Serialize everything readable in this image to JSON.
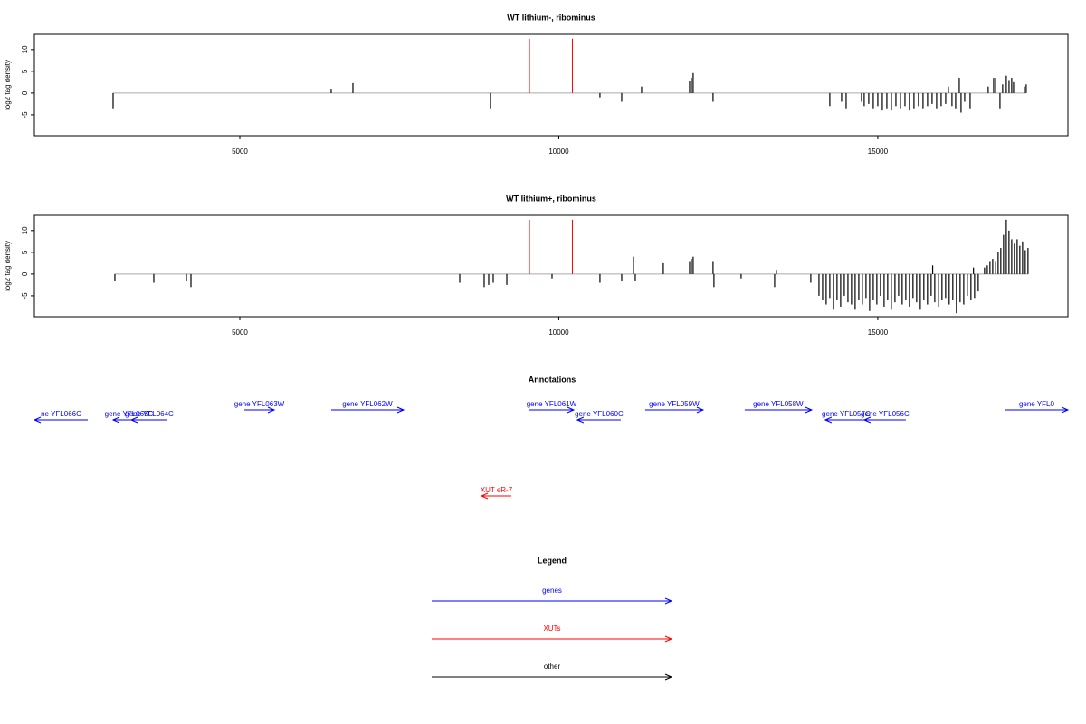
{
  "chart_data": [
    {
      "type": "spike",
      "title": "WT lithium-, ribominus",
      "ylabel": "log2 tag density",
      "xlim": [
        1780,
        17980
      ],
      "xticks": [
        5000,
        10000,
        15000
      ],
      "ylim": [
        -9.8,
        13.5
      ],
      "yticks": [
        -5,
        0,
        5,
        10
      ],
      "series": [
        {
          "color": "#000000",
          "x": [
            3014,
            6432,
            6773,
            8929,
            10645,
            10986,
            11298,
            12050,
            12078,
            12106,
            12418,
            14248,
            14433,
            14504,
            14745,
            14787,
            14858,
            14929,
            15000,
            15071,
            15142,
            15213,
            15284,
            15355,
            15426,
            15496,
            15567,
            15638,
            15709,
            15780,
            15851,
            15922,
            15993,
            16064,
            16106,
            16163,
            16220,
            16277,
            16305,
            16362,
            16447,
            16730,
            16816,
            16844,
            16915,
            16957,
            17014,
            17057,
            17099,
            17128,
            17298,
            17326
          ],
          "values": [
            -3.5,
            1,
            2.3,
            -3.5,
            -1,
            -2,
            1.5,
            2.7,
            3.5,
            4.6,
            -2,
            -3,
            -2,
            -3.5,
            -2,
            -3,
            -2.5,
            -3.5,
            -3,
            -4,
            -3.5,
            -4,
            -3,
            -3.5,
            -3,
            -4,
            -3.5,
            -3,
            -3.5,
            -3,
            -2.5,
            -3.5,
            -3,
            -2.5,
            1.5,
            -3,
            -3.5,
            3.5,
            -4.5,
            -2,
            -3.5,
            1.5,
            3.5,
            3.5,
            -3.5,
            2,
            4,
            3,
            3.5,
            2.5,
            1.5,
            2
          ]
        },
        {
          "color": "#ff0000",
          "x": [
            9540,
            10213
          ],
          "values": [
            12.5,
            12.5
          ]
        }
      ]
    },
    {
      "type": "spike",
      "title": "WT lithium+, ribominus",
      "ylabel": "log2 tag density",
      "xlim": [
        1780,
        17980
      ],
      "xticks": [
        5000,
        10000,
        15000
      ],
      "ylim": [
        -9.8,
        13.5
      ],
      "yticks": [
        -5,
        0,
        5,
        10
      ],
      "series": [
        {
          "color": "#000000",
          "x": [
            3042,
            3652,
            4163,
            4234,
            8447,
            8830,
            8901,
            8972,
            9185,
            9894,
            10645,
            10986,
            11170,
            11199,
            11638,
            12050,
            12078,
            12106,
            12418,
            12432,
            12858,
            13383,
            13411,
            13950,
            14078,
            14135,
            14191,
            14248,
            14305,
            14361,
            14418,
            14475,
            14532,
            14588,
            14645,
            14702,
            14758,
            14815,
            14872,
            14929,
            14985,
            15042,
            15099,
            15155,
            15212,
            15269,
            15326,
            15382,
            15439,
            15496,
            15552,
            15609,
            15666,
            15722,
            15779,
            15836,
            15893,
            15949,
            16006,
            16063,
            16119,
            16176,
            16233,
            16290,
            16347,
            16403,
            16460,
            16517,
            16574,
            16673,
            16716,
            16758,
            16801,
            16843,
            16886,
            16928,
            16971,
            17014,
            17056,
            17099,
            17141,
            17184,
            17226,
            17269,
            17311,
            17354,
            15860,
            16500
          ],
          "values": [
            -1.5,
            -2,
            -1.5,
            -3,
            -2,
            -3,
            -2.5,
            -2,
            -2.5,
            -1,
            -2,
            -1.5,
            4,
            -1.5,
            2.5,
            3,
            3.5,
            4,
            3,
            -3,
            -1,
            -3,
            1,
            -2,
            -5,
            -6,
            -7,
            -5.5,
            -8,
            -6,
            -7.5,
            -5,
            -6.5,
            -7,
            -8,
            -6,
            -7,
            -5.5,
            -8.5,
            -6,
            -7,
            -5,
            -7.5,
            -6,
            -8,
            -6.5,
            -5,
            -7,
            -6,
            -7.5,
            -5.5,
            -6.5,
            -8,
            -6,
            -7,
            -5,
            -6.5,
            -7.5,
            -6,
            -5.5,
            -7,
            -6,
            -9,
            -6.5,
            -7,
            -5,
            -6,
            -5.5,
            -4,
            1.5,
            2,
            3,
            3.5,
            3,
            5,
            6,
            9,
            12.5,
            10,
            8,
            7,
            8,
            6.5,
            7.5,
            5.5,
            6,
            2,
            1.5
          ]
        },
        {
          "color": "#ff0000",
          "x": [
            9540,
            10213
          ],
          "values": [
            12.5,
            12.5
          ]
        }
      ]
    }
  ],
  "annotations": {
    "title": "Annotations",
    "genes": {
      "color": "#0000ff",
      "features": [
        {
          "label": "ne YFL066C",
          "start": 2617,
          "end": 1780
        },
        {
          "label": "gene YFL065C",
          "start": 3510,
          "end": 3014
        },
        {
          "label": "gene YFL064C",
          "start": 3865,
          "end": 3298
        },
        {
          "label": "gene YFL063W",
          "start": 5071,
          "end": 5539
        },
        {
          "label": "gene YFL062W",
          "start": 6432,
          "end": 7567
        },
        {
          "label": "gene YFL061W",
          "start": 9539,
          "end": 10234
        },
        {
          "label": "gene YFL060C",
          "start": 10971,
          "end": 10290
        },
        {
          "label": "gene YFL059W",
          "start": 11354,
          "end": 12262
        },
        {
          "label": "gene YFL058W",
          "start": 12914,
          "end": 13964
        },
        {
          "label": "gene YFL057C",
          "start": 14829,
          "end": 14177
        },
        {
          "label": "gene YFL056C",
          "start": 15439,
          "end": 14787
        },
        {
          "label": "gene YFL0",
          "start": 17000,
          "end": 17980
        }
      ]
    },
    "xuts": {
      "color": "#ff0000",
      "features": [
        {
          "label": "XUT eR-7",
          "start": 9255,
          "end": 8787
        }
      ]
    }
  },
  "legend": {
    "title": "Legend",
    "entries": [
      {
        "label": "genes",
        "color": "#0000ff"
      },
      {
        "label": "XUTs",
        "color": "#ff0000"
      },
      {
        "label": "other",
        "color": "#000000"
      }
    ]
  }
}
